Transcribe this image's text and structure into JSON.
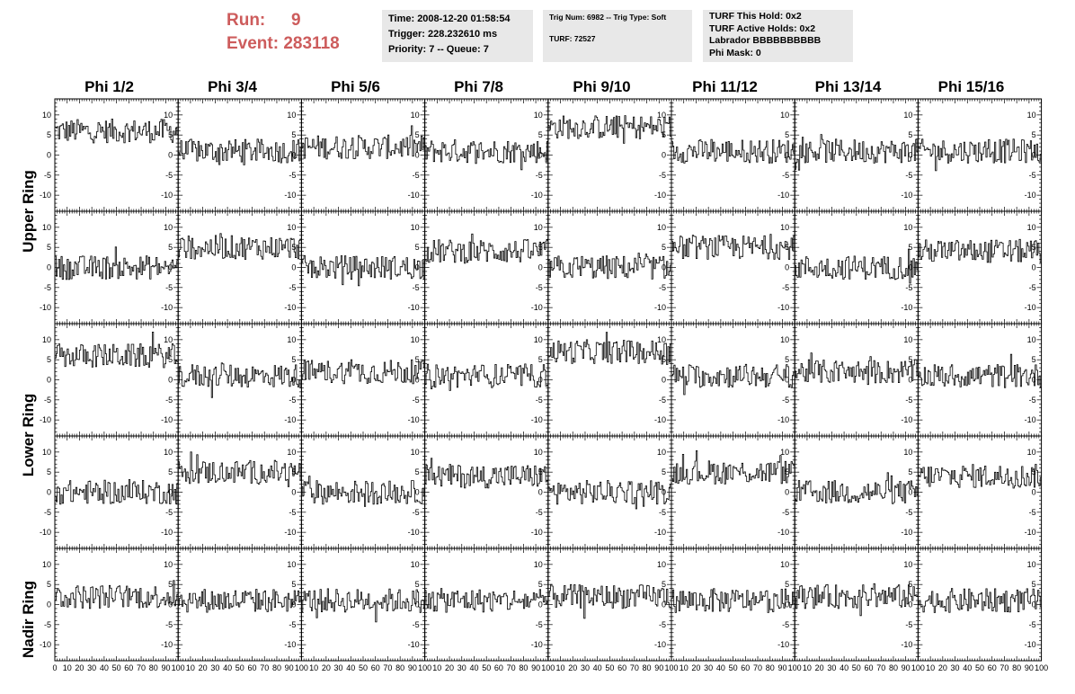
{
  "run": {
    "run_label": "Run:",
    "run_value": "9",
    "event_label": "Event:",
    "event_value": "283118",
    "color": "#cd5c5c"
  },
  "info_panel": {
    "time": "Time: 2008-12-20 01:58:54",
    "trigger": "Trigger: 228.232610 ms",
    "priority": "Priority: 7 -- Queue: 7"
  },
  "trig_panel": {
    "trig": "Trig Num: 6982 -- Trig Type: Soft",
    "turf": "TURF: 72527"
  },
  "turf_panel": {
    "hold": "TURF This Hold: 0x2",
    "active": "TURF Active Holds: 0x2",
    "labrador": "Labrador BBBBBBBBBB",
    "phimask": "Phi Mask: 0"
  },
  "columns": [
    "Phi 1/2",
    "Phi 3/4",
    "Phi 5/6",
    "Phi 7/8",
    "Phi 9/10",
    "Phi 11/12",
    "Phi 13/14",
    "Phi 15/16"
  ],
  "rings": [
    "Upper Ring",
    "Lower Ring",
    "Nadir Ring"
  ],
  "chart_data": {
    "type": "line",
    "rows": 5,
    "cols": 8,
    "xlim": [
      0,
      100
    ],
    "ylim": [
      -14,
      14
    ],
    "x_ticks": [
      "0",
      "10",
      "20",
      "30",
      "40",
      "50",
      "60",
      "70",
      "80",
      "90",
      "100"
    ],
    "y_ticks": [
      "10",
      "5",
      "0",
      "-5",
      "-10"
    ],
    "samples_per_trace": 100,
    "trace_baselines": [
      [
        6,
        1,
        2,
        1,
        7,
        1,
        1,
        1
      ],
      [
        0,
        5,
        0,
        4,
        0,
        5,
        0,
        4
      ],
      [
        6,
        1,
        2,
        1,
        7,
        1,
        2,
        1
      ],
      [
        0,
        5,
        0,
        4,
        0,
        5,
        0,
        4
      ],
      [
        2,
        1,
        1,
        1,
        2,
        1,
        2,
        1
      ]
    ],
    "trace_amplitude": 3,
    "line_color": "#000000"
  }
}
